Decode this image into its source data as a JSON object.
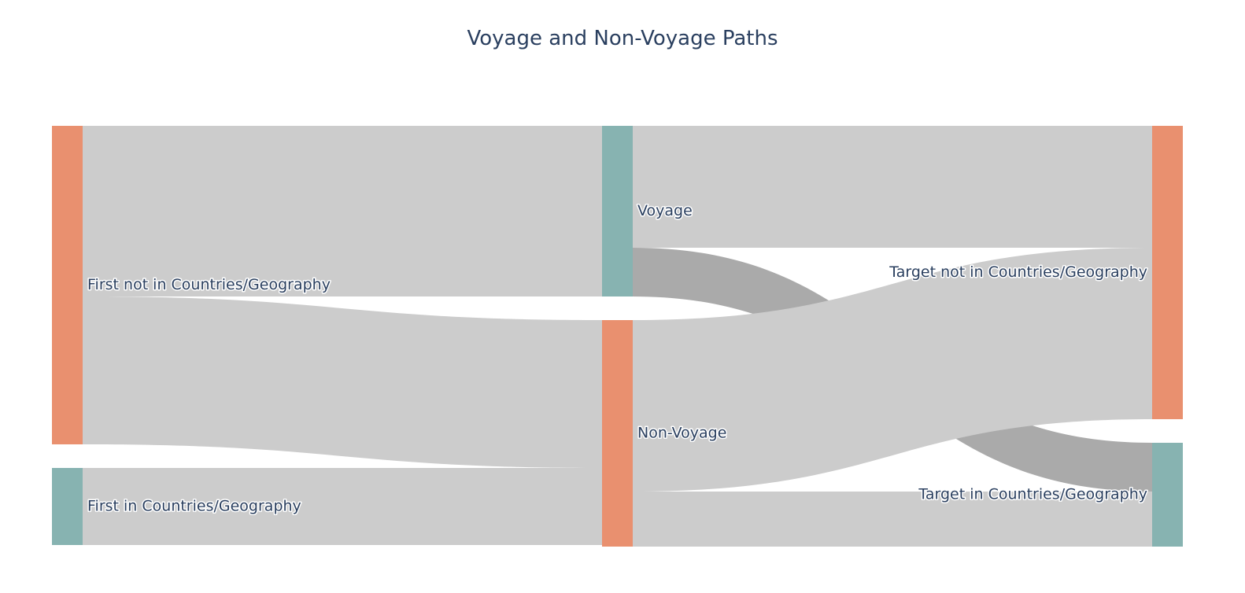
{
  "chart_data": {
    "type": "sankey",
    "title": "Voyage and Non-Voyage Paths",
    "nodes": [
      {
        "id": "first_not",
        "label": "First not in Countries/Geography",
        "color": "#e9906f",
        "column": 0
      },
      {
        "id": "first_in",
        "label": "First in Countries/Geography",
        "color": "#87b3b1",
        "column": 0
      },
      {
        "id": "voyage",
        "label": "Voyage",
        "color": "#87b3b1",
        "column": 1
      },
      {
        "id": "nonvoyage",
        "label": "Non-Voyage",
        "color": "#e9906f",
        "column": 1
      },
      {
        "id": "target_not",
        "label": "Target not in Countries/Geography",
        "color": "#e9906f",
        "column": 2
      },
      {
        "id": "target_in",
        "label": "Target in Countries/Geography",
        "color": "#87b3b1",
        "column": 2
      }
    ],
    "links": [
      {
        "source": "first_not",
        "target": "voyage",
        "value": 217,
        "color": "#cccccc"
      },
      {
        "source": "first_not",
        "target": "nonvoyage",
        "value": 188,
        "color": "#cccccc"
      },
      {
        "source": "first_in",
        "target": "nonvoyage",
        "value": 98,
        "color": "#cccccc"
      },
      {
        "source": "voyage",
        "target": "target_not",
        "value": 155,
        "color": "#cccccc"
      },
      {
        "source": "voyage",
        "target": "target_in",
        "value": 62,
        "color": "#a5a5a5"
      },
      {
        "source": "nonvoyage",
        "target": "target_not",
        "value": 218,
        "color": "#cccccc"
      },
      {
        "source": "nonvoyage",
        "target": "target_in",
        "value": 70,
        "color": "#cccccc"
      }
    ]
  }
}
